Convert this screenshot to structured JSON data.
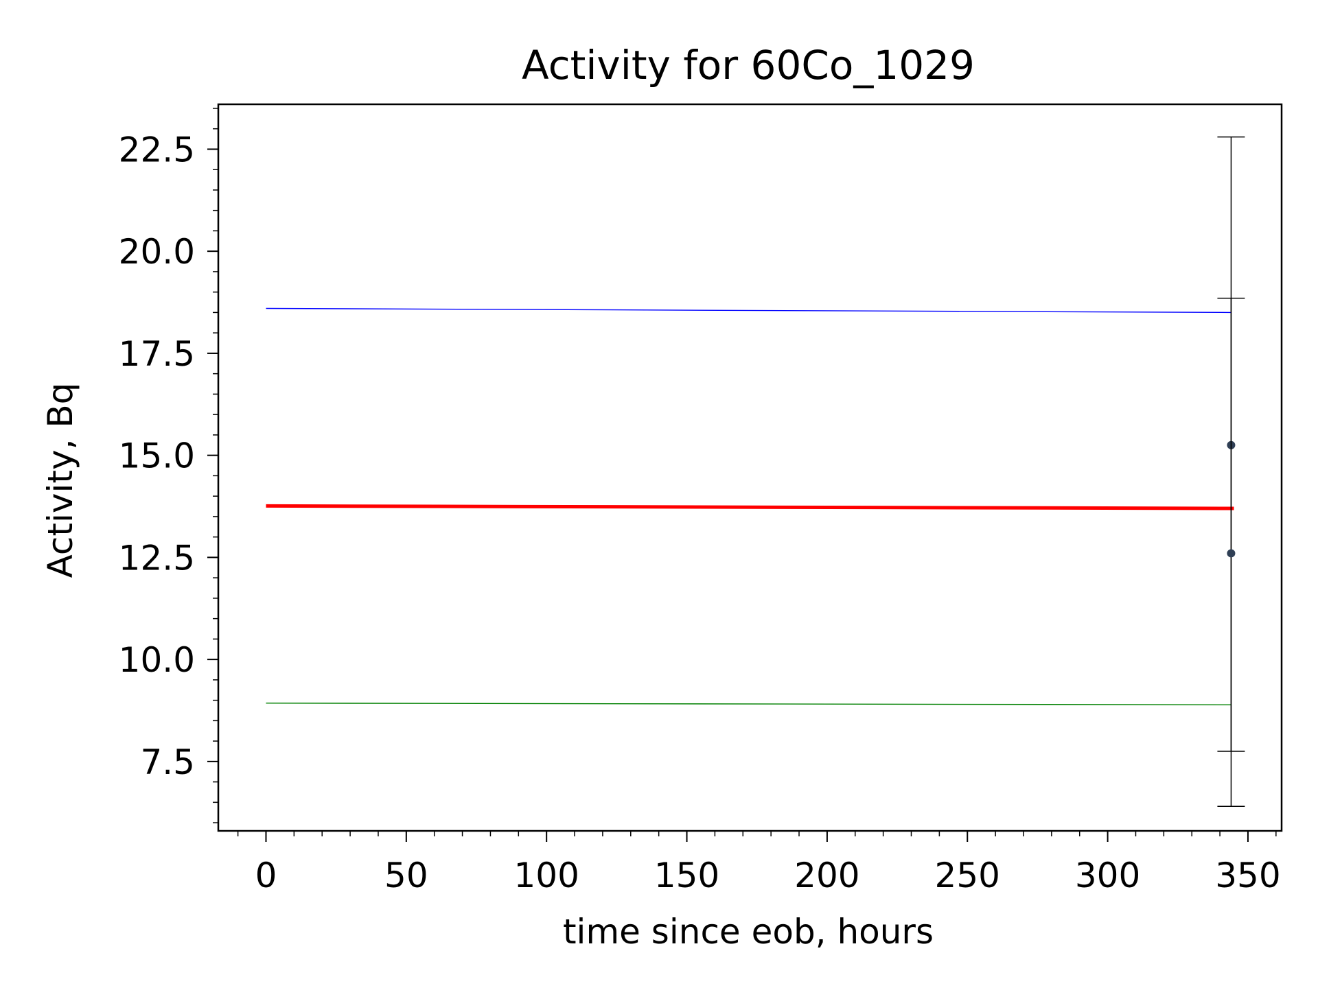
{
  "chart_data": {
    "type": "line",
    "title": "Activity for 60Co_1029",
    "xlabel": "time since eob, hours",
    "ylabel": "Activity, Bq",
    "xlim": [
      -17,
      362
    ],
    "ylim": [
      5.8,
      23.6
    ],
    "x_ticks": [
      "0",
      "50",
      "100",
      "150",
      "200",
      "250",
      "300",
      "350"
    ],
    "x_tick_values": [
      0,
      50,
      100,
      150,
      200,
      250,
      300,
      350
    ],
    "y_ticks": [
      "7.5",
      "10.0",
      "12.5",
      "15.0",
      "17.5",
      "20.0",
      "22.5"
    ],
    "y_tick_values": [
      7.5,
      10.0,
      12.5,
      15.0,
      17.5,
      20.0,
      22.5
    ],
    "x_minor_step": 10,
    "y_minor_step": 0.5,
    "grid": false,
    "legend": "none",
    "series": [
      {
        "color": "#0000ff",
        "x": [
          0,
          344
        ],
        "y": [
          18.6,
          18.5
        ],
        "style": "thin-line"
      },
      {
        "color": "#ff0000",
        "x": [
          0,
          345
        ],
        "y": [
          13.76,
          13.7
        ],
        "style": "thick-line"
      },
      {
        "color": "#008000",
        "x": [
          0,
          344
        ],
        "y": [
          8.93,
          8.89
        ],
        "style": "thin-line"
      }
    ],
    "points": [
      {
        "x": 344,
        "y": 15.25,
        "yerr_low": 7.75,
        "yerr_high": 22.8,
        "color": "#2f3f55"
      },
      {
        "x": 344,
        "y": 12.6,
        "yerr_low": 6.4,
        "yerr_high": 18.85,
        "color": "#2f3f55"
      }
    ]
  }
}
